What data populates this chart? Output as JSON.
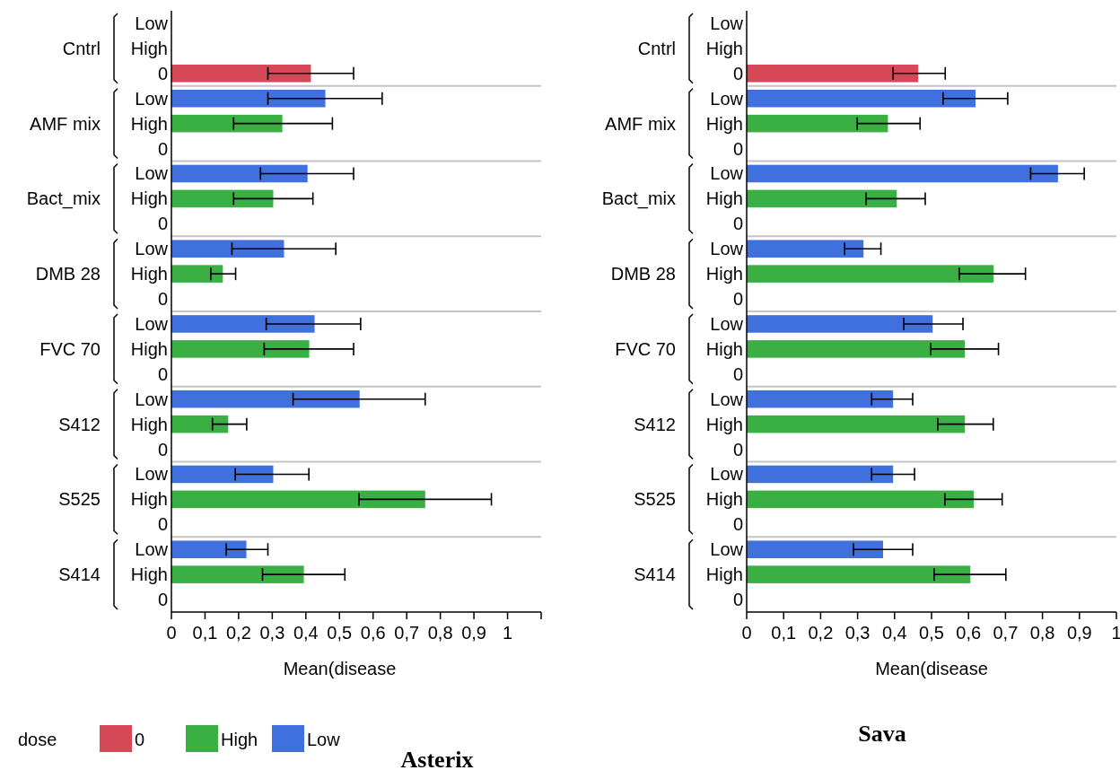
{
  "chart_data": [
    {
      "type": "bar",
      "orientation": "horizontal",
      "title": "Asterix",
      "xlabel": "Mean(disease",
      "legend_title": "dose",
      "legend": "bottom",
      "categories": [
        "Low",
        "High",
        "0",
        "Low",
        "High",
        "0",
        "Low",
        "High",
        "0",
        "Low",
        "High",
        "0",
        "Low",
        "High",
        "0",
        "Low",
        "High",
        "0",
        "Low",
        "High",
        "0",
        "Low",
        "High",
        "0"
      ],
      "annotations": [
        "Cntrl",
        "AMF mix",
        "Bact_mix",
        "DMB 28",
        "FVC 70",
        "S412",
        "S525",
        "S414"
      ],
      "xlim": [
        0,
        1.1
      ],
      "xticks": [
        {
          "value": 0,
          "label": "0"
        },
        {
          "value": 0.1,
          "label": "0,1"
        },
        {
          "value": 0.2,
          "label": "0,2"
        },
        {
          "value": 0.3,
          "label": "0,3"
        },
        {
          "value": 0.4,
          "label": "0,4"
        },
        {
          "value": 0.5,
          "label": "0,5"
        },
        {
          "value": 0.6,
          "label": "0,6"
        },
        {
          "value": 0.7,
          "label": "0,7"
        },
        {
          "value": 0.8,
          "label": "0,8"
        },
        {
          "value": 0.9,
          "label": "0,9"
        },
        {
          "value": 1,
          "label": "1"
        },
        {
          "value": 1.1,
          "label": null
        }
      ],
      "series": [
        {
          "name": "0",
          "color": "#d64858",
          "values": [
            null,
            null,
            0.415,
            null,
            null,
            null,
            null,
            null,
            null,
            null,
            null,
            null,
            null,
            null,
            null,
            null,
            null,
            null,
            null,
            null,
            null,
            null,
            null,
            null
          ],
          "errors": [
            null,
            null,
            [
              0.287,
              0.542
            ],
            null,
            null,
            null,
            null,
            null,
            null,
            null,
            null,
            null,
            null,
            null,
            null,
            null,
            null,
            null,
            null,
            null,
            null,
            null,
            null,
            null
          ]
        },
        {
          "name": "High",
          "color": "#3aaf44",
          "values": [
            null,
            null,
            null,
            null,
            0.33,
            null,
            null,
            0.303,
            null,
            null,
            0.153,
            null,
            null,
            0.41,
            null,
            null,
            0.169,
            null,
            null,
            0.755,
            null,
            null,
            0.394,
            null
          ],
          "errors": [
            null,
            null,
            null,
            null,
            [
              0.185,
              0.479
            ],
            null,
            null,
            [
              0.185,
              0.421
            ],
            null,
            null,
            [
              0.117,
              0.191
            ],
            null,
            null,
            [
              0.276,
              0.542
            ],
            null,
            null,
            [
              0.122,
              0.224
            ],
            null,
            null,
            [
              0.558,
              0.952
            ],
            null,
            null,
            [
              0.271,
              0.516
            ],
            null
          ]
        },
        {
          "name": "Low",
          "color": "#4070dd",
          "values": [
            null,
            null,
            null,
            0.458,
            null,
            null,
            0.405,
            null,
            null,
            0.335,
            null,
            null,
            0.426,
            null,
            null,
            0.56,
            null,
            null,
            0.303,
            null,
            null,
            0.223,
            null,
            null
          ],
          "errors": [
            null,
            null,
            null,
            [
              0.287,
              0.627
            ],
            null,
            null,
            [
              0.265,
              0.542
            ],
            null,
            null,
            [
              0.18,
              0.489
            ],
            null,
            null,
            [
              0.282,
              0.563
            ],
            null,
            null,
            [
              0.362,
              0.755
            ],
            null,
            null,
            [
              0.19,
              0.409
            ],
            null,
            null,
            [
              0.163,
              0.287
            ],
            null,
            null
          ]
        }
      ]
    },
    {
      "type": "bar",
      "orientation": "horizontal",
      "title": "Sava",
      "xlabel": "Mean(disease",
      "categories": [
        "Low",
        "High",
        "0",
        "Low",
        "High",
        "0",
        "Low",
        "High",
        "0",
        "Low",
        "High",
        "0",
        "Low",
        "High",
        "0",
        "Low",
        "High",
        "0",
        "Low",
        "High",
        "0",
        "Low",
        "High",
        "0"
      ],
      "annotations": [
        "Cntrl",
        "AMF mix",
        "Bact_mix",
        "DMB 28",
        "FVC 70",
        "S412",
        "S525",
        "S414"
      ],
      "xlim": [
        0,
        1
      ],
      "xticks": [
        {
          "value": 0,
          "label": "0"
        },
        {
          "value": 0.1,
          "label": "0,1"
        },
        {
          "value": 0.2,
          "label": "0,2"
        },
        {
          "value": 0.3,
          "label": "0,3"
        },
        {
          "value": 0.4,
          "label": "0,4"
        },
        {
          "value": 0.5,
          "label": "0,5"
        },
        {
          "value": 0.6,
          "label": "0,6"
        },
        {
          "value": 0.7,
          "label": "0,7"
        },
        {
          "value": 0.8,
          "label": "0,8"
        },
        {
          "value": 0.9,
          "label": "0,9"
        },
        {
          "value": 1,
          "label": "1"
        }
      ],
      "series": [
        {
          "color": "#d64858",
          "values": [
            null,
            null,
            0.464,
            null,
            null,
            null,
            null,
            null,
            null,
            null,
            null,
            null,
            null,
            null,
            null,
            null,
            null,
            null,
            null,
            null,
            null,
            null,
            null,
            null
          ],
          "errors": [
            null,
            null,
            [
              0.396,
              0.537
            ],
            null,
            null,
            null,
            null,
            null,
            null,
            null,
            null,
            null,
            null,
            null,
            null,
            null,
            null,
            null,
            null,
            null,
            null,
            null,
            null,
            null
          ]
        },
        {
          "color": "#3aaf44",
          "values": [
            null,
            null,
            null,
            null,
            0.382,
            null,
            null,
            0.406,
            null,
            null,
            0.668,
            null,
            null,
            0.59,
            null,
            null,
            0.59,
            null,
            null,
            0.614,
            null,
            null,
            0.605,
            null
          ],
          "errors": [
            null,
            null,
            null,
            null,
            [
              0.299,
              0.469
            ],
            null,
            null,
            [
              0.323,
              0.483
            ],
            null,
            null,
            [
              0.575,
              0.754
            ],
            null,
            null,
            [
              0.498,
              0.681
            ],
            null,
            null,
            [
              0.517,
              0.667
            ],
            null,
            null,
            [
              0.536,
              0.691
            ],
            null,
            null,
            [
              0.507,
              0.701
            ],
            null
          ]
        },
        {
          "color": "#4070dd",
          "values": [
            null,
            null,
            null,
            0.619,
            null,
            null,
            0.842,
            null,
            null,
            0.316,
            null,
            null,
            0.503,
            null,
            null,
            0.396,
            null,
            null,
            0.396,
            null,
            null,
            0.369,
            null,
            null
          ],
          "errors": [
            null,
            null,
            null,
            [
              0.531,
              0.706
            ],
            null,
            null,
            [
              0.768,
              0.913
            ],
            null,
            null,
            [
              0.265,
              0.363
            ],
            null,
            null,
            [
              0.425,
              0.585
            ],
            null,
            null,
            [
              0.338,
              0.449
            ],
            null,
            null,
            [
              0.338,
              0.454
            ],
            null,
            null,
            [
              0.289,
              0.449
            ],
            null,
            null
          ]
        }
      ]
    }
  ]
}
